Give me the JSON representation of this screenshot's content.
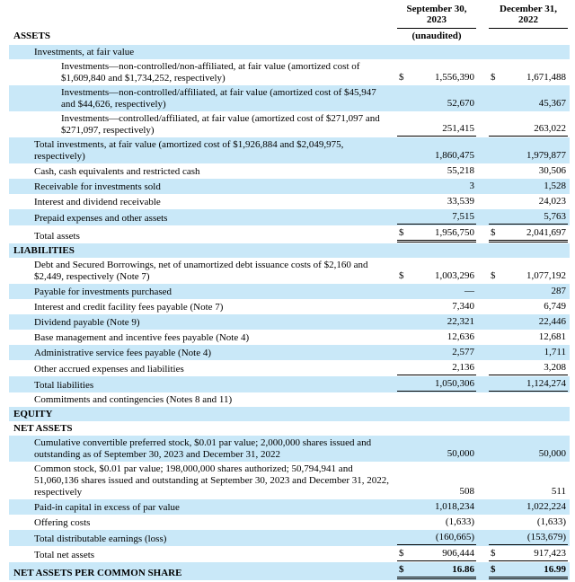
{
  "header": {
    "col1": {
      "line1": "September 30,",
      "line2": "2023",
      "subtitle": "(unaudited)"
    },
    "col2": {
      "line1": "December 31,",
      "line2": "2022",
      "subtitle": ""
    }
  },
  "sections": {
    "assets": "ASSETS"
  },
  "colors": {
    "row_shade": "#c9e8f8",
    "text": "#000000",
    "rule": "#000000"
  },
  "rows": [
    {
      "label": "Investments, at fair value",
      "indent": 1,
      "shaded": true
    },
    {
      "label": "Investments—non-controlled/non-affiliated, at fair value (amortized cost of $1,609,840 and $1,734,252, respectively)",
      "indent": 2,
      "dollar": true,
      "v1": "1,556,390",
      "v2": "1,671,488"
    },
    {
      "label": "Investments—non-controlled/affiliated, at fair value (amortized cost of $45,947 and $44,626, respectively)",
      "indent": 2,
      "shaded": true,
      "v1": "52,670",
      "v2": "45,367"
    },
    {
      "label": "Investments—controlled/affiliated, at fair value (amortized cost of $271,097 and $271,097, respectively)",
      "indent": 2,
      "v1": "251,415",
      "v2": "263,022",
      "rule": "single"
    },
    {
      "label": "Total investments, at fair value (amortized cost of $1,926,884 and $2,049,975, respectively)",
      "indent": 1,
      "shaded": true,
      "v1": "1,860,475",
      "v2": "1,979,877"
    },
    {
      "label": "Cash, cash equivalents and restricted cash",
      "indent": 1,
      "v1": "55,218",
      "v2": "30,506"
    },
    {
      "label": "Receivable for investments sold",
      "indent": 1,
      "shaded": true,
      "v1": "3",
      "v2": "1,528"
    },
    {
      "label": "Interest and dividend receivable",
      "indent": 1,
      "v1": "33,539",
      "v2": "24,023"
    },
    {
      "label": "Prepaid expenses and other assets",
      "indent": 1,
      "shaded": true,
      "v1": "7,515",
      "v2": "5,763",
      "rule": "single"
    },
    {
      "label": "Total assets",
      "indent": 1,
      "dollar": true,
      "v1": "1,956,750",
      "v2": "2,041,697",
      "rule": "double"
    },
    {
      "label": "LIABILITIES",
      "indent": 0,
      "bold": true,
      "shaded": true,
      "section": true
    },
    {
      "label": "Debt and Secured Borrowings, net of unamortized debt issuance costs of $2,160 and $2,449, respectively (Note 7)",
      "indent": 1,
      "dollar": true,
      "v1": "1,003,296",
      "v2": "1,077,192"
    },
    {
      "label": "Payable for investments purchased",
      "indent": 1,
      "shaded": true,
      "v1": "—",
      "v2": "287"
    },
    {
      "label": "Interest and credit facility fees payable (Note 7)",
      "indent": 1,
      "v1": "7,340",
      "v2": "6,749"
    },
    {
      "label": "Dividend payable (Note 9)",
      "indent": 1,
      "shaded": true,
      "v1": "22,321",
      "v2": "22,446"
    },
    {
      "label": "Base management and incentive fees payable (Note 4)",
      "indent": 1,
      "v1": "12,636",
      "v2": "12,681"
    },
    {
      "label": "Administrative service fees payable (Note 4)",
      "indent": 1,
      "shaded": true,
      "v1": "2,577",
      "v2": "1,711"
    },
    {
      "label": "Other accrued expenses and liabilities",
      "indent": 1,
      "v1": "2,136",
      "v2": "3,208",
      "rule": "single"
    },
    {
      "label": "Total liabilities",
      "indent": 1,
      "shaded": true,
      "v1": "1,050,306",
      "v2": "1,124,274",
      "rule": "single"
    },
    {
      "label": "Commitments and contingencies (Notes 8 and 11)",
      "indent": 1
    },
    {
      "label": "EQUITY",
      "indent": 0,
      "bold": true,
      "shaded": true,
      "section": true
    },
    {
      "label": "NET ASSETS",
      "indent": 0,
      "bold": true,
      "section": true
    },
    {
      "label": "Cumulative convertible preferred stock, $0.01 par value; 2,000,000 shares issued and outstanding as of September 30, 2023 and December 31, 2022",
      "indent": 1,
      "shaded": true,
      "v1": "50,000",
      "v2": "50,000"
    },
    {
      "label": "Common stock, $0.01 par value; 198,000,000 shares authorized; 50,794,941 and 51,060,136 shares issued and outstanding at September 30, 2023 and December 31, 2022, respectively",
      "indent": 1,
      "v1": "508",
      "v2": "511"
    },
    {
      "label": "Paid-in capital in excess of par value",
      "indent": 1,
      "shaded": true,
      "v1": "1,018,234",
      "v2": "1,022,224"
    },
    {
      "label": "Offering costs",
      "indent": 1,
      "v1": "(1,633)",
      "v2": "(1,633)"
    },
    {
      "label": "Total distributable earnings (loss)",
      "indent": 1,
      "shaded": true,
      "v1": "(160,665)",
      "v2": "(153,679)",
      "rule": "single"
    },
    {
      "label": "Total net assets",
      "indent": 1,
      "dollar": true,
      "v1": "906,444",
      "v2": "917,423",
      "rule": "single"
    },
    {
      "label": "NET ASSETS PER COMMON SHARE",
      "indent": 0,
      "bold": true,
      "shaded": true,
      "dollar": true,
      "v1": "16.86",
      "v2": "16.99",
      "rule": "double",
      "bold_values": true
    }
  ]
}
